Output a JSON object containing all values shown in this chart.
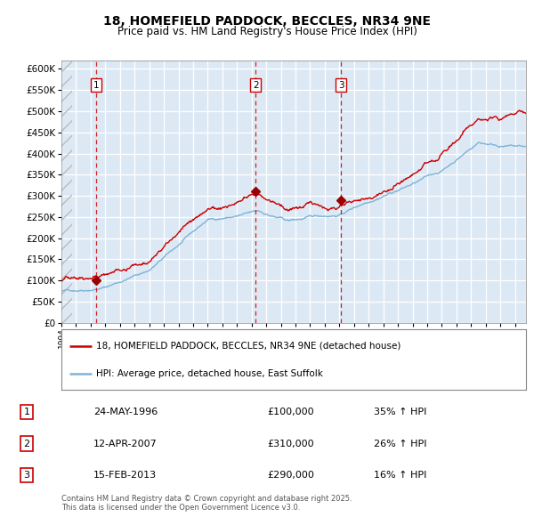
{
  "title": "18, HOMEFIELD PADDOCK, BECCLES, NR34 9NE",
  "subtitle": "Price paid vs. HM Land Registry's House Price Index (HPI)",
  "bg_color": "#dce9f5",
  "red_line_color": "#cc0000",
  "blue_line_color": "#7eb4d8",
  "purchase_marker_color": "#990000",
  "vline_color": "#cc0000",
  "grid_color": "#ffffff",
  "ylim": [
    0,
    620000
  ],
  "ytick_step": 50000,
  "transactions": [
    {
      "label": "1",
      "date": "24-MAY-1996",
      "date_decimal": 1996.396,
      "price": 100000,
      "hpi_pct": "35% ↑ HPI"
    },
    {
      "label": "2",
      "date": "12-APR-2007",
      "date_decimal": 2007.278,
      "price": 310000,
      "hpi_pct": "26% ↑ HPI"
    },
    {
      "label": "3",
      "date": "15-FEB-2013",
      "date_decimal": 2013.124,
      "price": 290000,
      "hpi_pct": "16% ↑ HPI"
    }
  ],
  "footer": "Contains HM Land Registry data © Crown copyright and database right 2025.\nThis data is licensed under the Open Government Licence v3.0.",
  "legend_line1": "18, HOMEFIELD PADDOCK, BECCLES, NR34 9NE (detached house)",
  "legend_line2": "HPI: Average price, detached house, East Suffolk",
  "xstart": 1994.0,
  "xend": 2025.75,
  "data_xstart": 1994.75
}
